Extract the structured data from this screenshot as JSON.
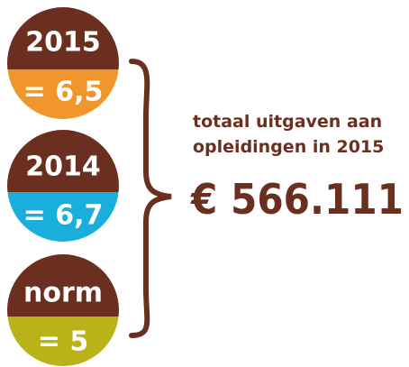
{
  "circles": [
    {
      "label": "2015",
      "value": "= 6,5"
    },
    {
      "label": "2014",
      "value": "= 6,7"
    },
    {
      "label": "norm",
      "value": "= 5"
    }
  ],
  "summary": {
    "line1": "totaal uitgaven aan",
    "line2": "opleidingen in 2015",
    "amount": "€ 566.111"
  }
}
